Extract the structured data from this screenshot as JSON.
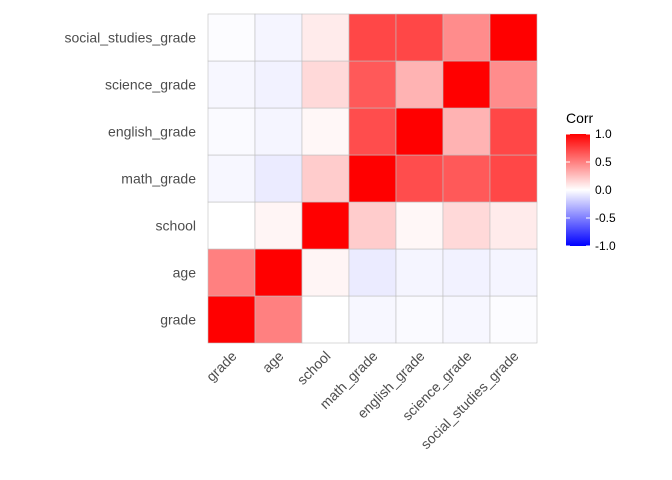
{
  "chart_data": {
    "type": "heatmap",
    "title": "",
    "xlabel": "",
    "ylabel": "",
    "variables": [
      "grade",
      "age",
      "school",
      "math_grade",
      "english_grade",
      "science_grade",
      "social_studies_grade"
    ],
    "matrix": [
      [
        1.0,
        0.5,
        0.0,
        -0.03,
        -0.02,
        -0.03,
        -0.01
      ],
      [
        0.5,
        1.0,
        0.04,
        -0.08,
        -0.04,
        -0.05,
        -0.04
      ],
      [
        0.0,
        0.04,
        1.0,
        0.2,
        0.03,
        0.15,
        0.08
      ],
      [
        -0.03,
        -0.08,
        0.2,
        1.0,
        0.7,
        0.65,
        0.72
      ],
      [
        -0.02,
        -0.04,
        0.03,
        0.7,
        1.0,
        0.3,
        0.72
      ],
      [
        -0.03,
        -0.05,
        0.15,
        0.65,
        0.3,
        1.0,
        0.45
      ],
      [
        -0.01,
        -0.04,
        0.08,
        0.72,
        0.72,
        0.45,
        1.0
      ]
    ],
    "legend": {
      "title": "Corr",
      "ticks": [
        "1.0",
        "0.5",
        "0.0",
        "-0.5",
        "-1.0"
      ],
      "tick_values": [
        1.0,
        0.5,
        0.0,
        -0.5,
        -1.0
      ],
      "range": [
        -1,
        1
      ],
      "placement": "right"
    },
    "colors": {
      "high": "#FF0000",
      "mid": "#FFFFFF",
      "low": "#0000FF",
      "cell_border": "#BFBFBF"
    },
    "grid": false
  }
}
